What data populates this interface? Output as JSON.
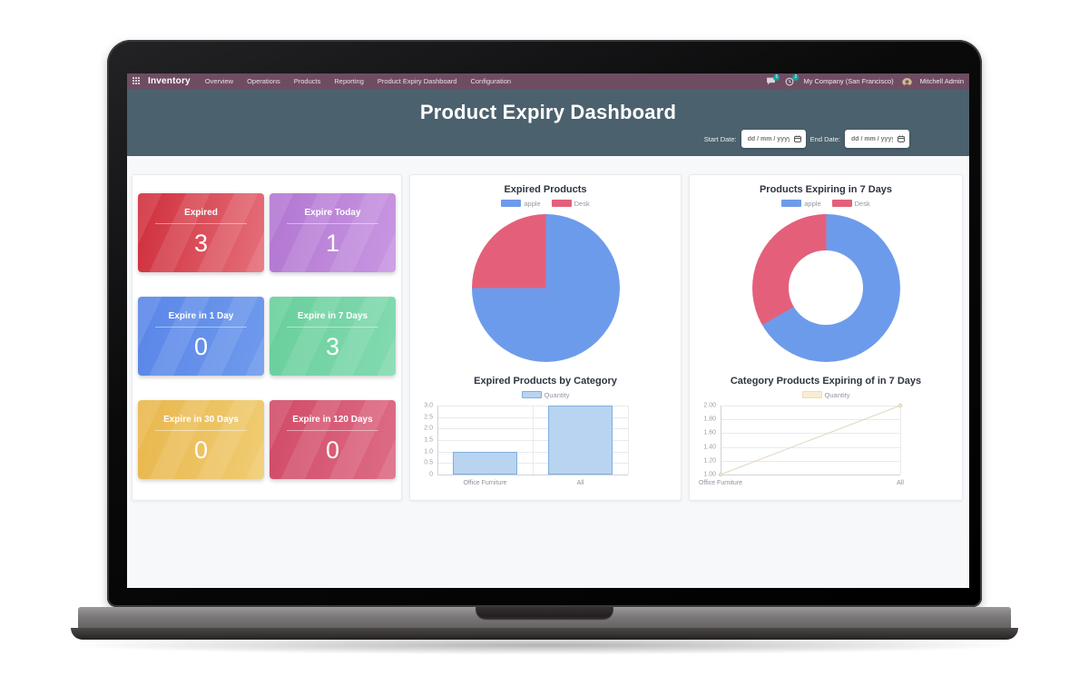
{
  "navbar": {
    "app_name": "Inventory",
    "menu": [
      "Overview",
      "Operations",
      "Products",
      "Reporting",
      "Product Expiry Dashboard",
      "Configuration"
    ],
    "messages_badge": "5",
    "activities_badge": "2",
    "company": "My Company (San Francisco)",
    "user": "Mitchell Admin"
  },
  "header": {
    "title": "Product Expiry Dashboard",
    "start_date_label": "Start Date:",
    "end_date_label": "End Date:",
    "date_placeholder": "dd / mm / yyyy"
  },
  "cards": [
    {
      "label": "Expired",
      "value": "3",
      "color_dark": "#cf2e3b",
      "color_light": "#e5707b"
    },
    {
      "label": "Expire Today",
      "value": "1",
      "color_dark": "#b276d2",
      "color_light": "#c897e2"
    },
    {
      "label": "Expire in 1 Day",
      "value": "0",
      "color_dark": "#5a86e8",
      "color_light": "#6f9aec"
    },
    {
      "label": "Expire in 7 Days",
      "value": "3",
      "color_dark": "#68cf9b",
      "color_light": "#83dab1"
    },
    {
      "label": "Expire in 30 Days",
      "value": "0",
      "color_dark": "#e9b74e",
      "color_light": "#f0cc72"
    },
    {
      "label": "Expire in 120 Days",
      "value": "0",
      "color_dark": "#d14b68",
      "color_light": "#dd6c86"
    }
  ],
  "chart_data": [
    {
      "type": "pie",
      "title": "Expired Products",
      "series": [
        {
          "name": "apple",
          "value": 3,
          "color": "#6d9beb"
        },
        {
          "name": "Desk",
          "value": 1,
          "color": "#e4607a"
        }
      ]
    },
    {
      "type": "doughnut",
      "title": "Products Expiring in 7 Days",
      "series": [
        {
          "name": "apple",
          "value": 2,
          "color": "#6d9beb"
        },
        {
          "name": "Desk",
          "value": 1,
          "color": "#e4607a"
        }
      ]
    },
    {
      "type": "bar",
      "title": "Expired Products by Category",
      "legend": "Quantity",
      "categories": [
        "Office Furniture",
        "All"
      ],
      "values": [
        1,
        3
      ],
      "ymin": 0,
      "ymax": 3,
      "yticks": [
        "0",
        "0.5",
        "1.0",
        "1.5",
        "2.0",
        "2.5",
        "3.0"
      ],
      "bar_fill": "#b8d4f1",
      "bar_border": "#7fafdf",
      "legend_fill": "#b8d4f1",
      "legend_border": "#7fafdf"
    },
    {
      "type": "line",
      "title": "Category Products Expiring of in 7 Days",
      "legend": "Quantity",
      "categories": [
        "Office Furniture",
        "All"
      ],
      "values": [
        1,
        2
      ],
      "ymin": 1,
      "ymax": 2,
      "yticks": [
        "1.00",
        "1.20",
        "1.40",
        "1.60",
        "1.80",
        "2.00"
      ],
      "line_color": "#e0d6c2",
      "point_fill": "#f6e9ce",
      "point_border": "#dcc9a2",
      "legend_fill": "#f8ecd2",
      "legend_border": "#eeddbb"
    }
  ]
}
